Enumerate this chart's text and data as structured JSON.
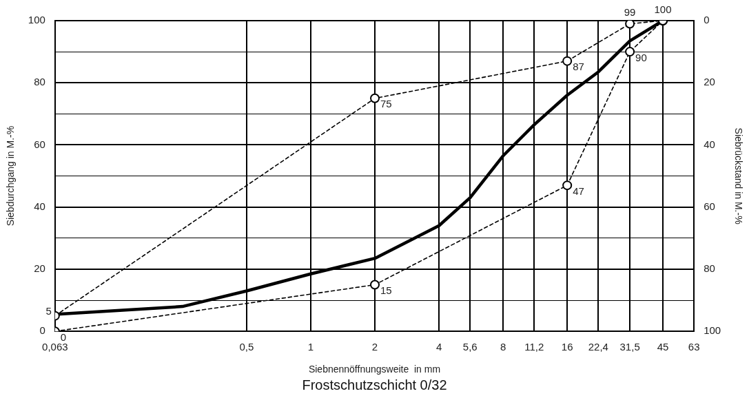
{
  "chart_data": {
    "type": "line",
    "title": "Frostschutzschicht 0/32",
    "xlabel": "Siebnennöffnungsweite  in mm",
    "ylabel": "Siebdurchgang in M.-%",
    "y2label": "Siebrückstand in M.-%",
    "log": "x",
    "grid": true,
    "xlim": [
      0.063,
      63
    ],
    "xticks": [
      {
        "value": 0.063,
        "label": "0,063"
      },
      {
        "value": 0.5,
        "label": "0,5"
      },
      1,
      2,
      4,
      {
        "value": 5.6,
        "label": "5,6"
      },
      8,
      {
        "value": 11.2,
        "label": "11,2"
      },
      16,
      {
        "value": 22.4,
        "label": "22,4"
      },
      {
        "value": 31.5,
        "label": "31,5"
      },
      45,
      63
    ],
    "ylim": [
      0,
      100
    ],
    "yticks": [
      0,
      {
        "value": 10,
        "label": null
      },
      20,
      {
        "value": 30,
        "label": null
      },
      40,
      {
        "value": 50,
        "label": null
      },
      60,
      {
        "value": 70,
        "label": null
      },
      80,
      {
        "value": 90,
        "label": null
      },
      100
    ],
    "y2lim": [
      100,
      0
    ],
    "y2ticks": [
      0,
      20,
      40,
      60,
      80,
      100
    ],
    "series": [
      {
        "color": "#000000",
        "marker": "none",
        "line_style": "solid",
        "x": [
          0.063,
          0.25,
          0.5,
          1,
          2,
          4,
          5.6,
          8,
          11.2,
          16,
          22.4,
          31.5,
          45
        ],
        "values": [
          5.5,
          8,
          13,
          18.5,
          23.5,
          34,
          43,
          56.5,
          66.5,
          76,
          83.5,
          93.5,
          100
        ]
      },
      {
        "color": "#000000",
        "marker": "circle",
        "line_style": "dashed",
        "x": [
          0.063,
          2,
          16,
          31.5,
          45
        ],
        "values": [
          5,
          75,
          87,
          99,
          100
        ],
        "value_labels": [
          "5",
          "75",
          "87",
          "99",
          "100"
        ]
      },
      {
        "color": "#000000",
        "marker": "circle",
        "line_style": "dashed",
        "x": [
          0.063,
          2,
          16,
          31.5,
          45
        ],
        "values": [
          0,
          15,
          47,
          90,
          100
        ],
        "value_labels": [
          "0",
          "15",
          "47",
          "90",
          null
        ]
      }
    ]
  }
}
